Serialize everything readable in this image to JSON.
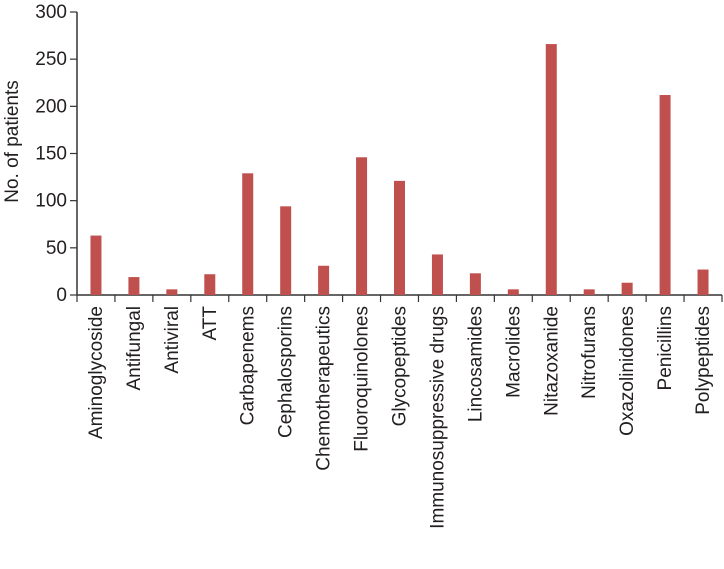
{
  "chart_data": {
    "type": "bar",
    "title": "",
    "xlabel": "",
    "ylabel": "No. of patients",
    "ylim": [
      0,
      300
    ],
    "yticks": [
      0,
      50,
      100,
      150,
      200,
      250,
      300
    ],
    "grid": false,
    "legend": "none",
    "bar_color": "#c0504d",
    "categories": [
      "Aminoglycoside",
      "Antifungal",
      "Antiviral",
      "ATT",
      "Carbapenems",
      "Cephalosporins",
      "Chemotherapeutics",
      "Fluoroquinolones",
      "Glycopeptides",
      "Immunosuppressive drugs",
      "Lincosamides",
      "Macrolides",
      "Nitazoxanide",
      "Nitrofurans",
      "Oxazolinidones",
      "Penicillins",
      "Polypeptides"
    ],
    "values": [
      63,
      19,
      6,
      22,
      129,
      94,
      31,
      146,
      121,
      43,
      23,
      6,
      266,
      6,
      13,
      212,
      27
    ]
  }
}
